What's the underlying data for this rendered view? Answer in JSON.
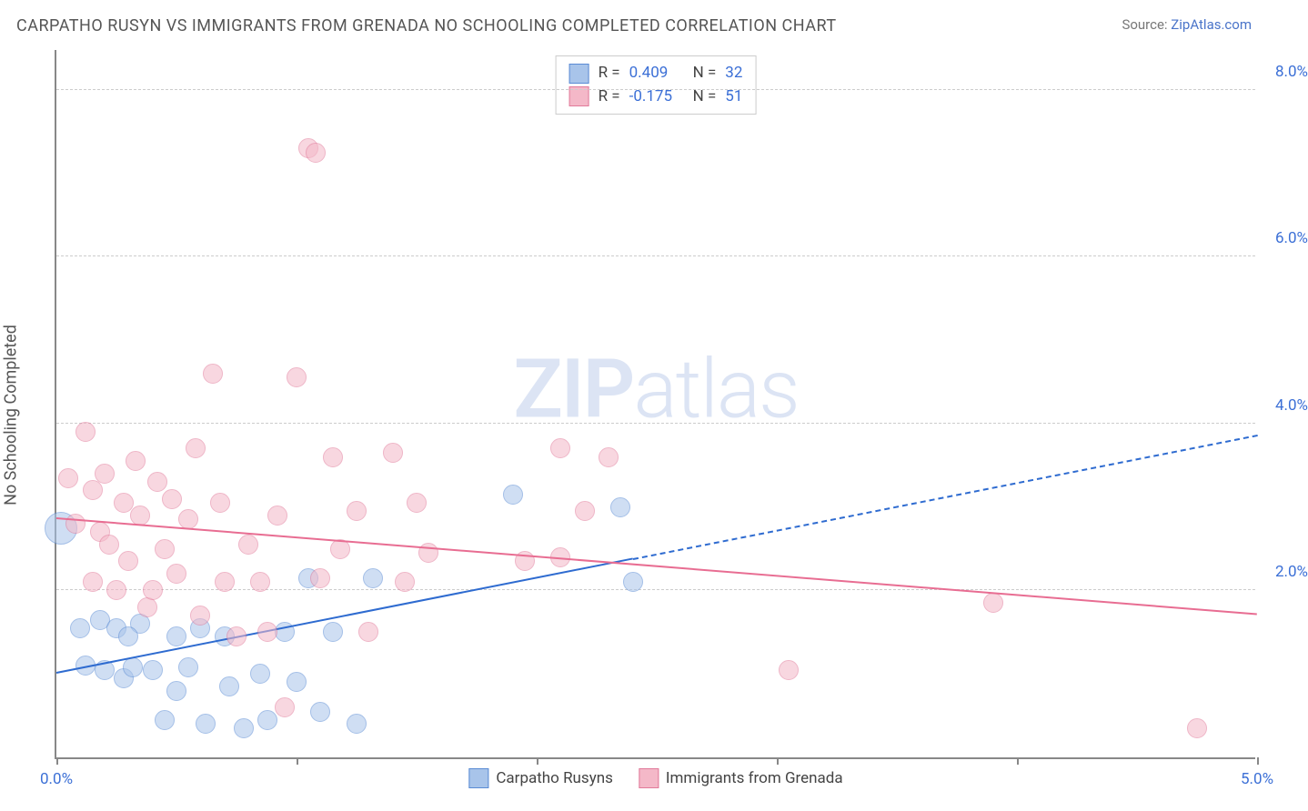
{
  "header": {
    "title": "CARPATHO RUSYN VS IMMIGRANTS FROM GRENADA NO SCHOOLING COMPLETED CORRELATION CHART",
    "source_prefix": "Source: ",
    "source_name": "ZipAtlas.com"
  },
  "chart": {
    "type": "scatter",
    "ylabel": "No Schooling Completed",
    "xlim": [
      0,
      5
    ],
    "ylim": [
      0,
      8.5
    ],
    "x_ticks": [
      0,
      1,
      2,
      3,
      4,
      5
    ],
    "x_tick_labels_shown": {
      "0": "0.0%",
      "5": "5.0%"
    },
    "y_gridlines": [
      2,
      4,
      6,
      8
    ],
    "y_tick_labels": {
      "2": "2.0%",
      "4": "4.0%",
      "6": "6.0%",
      "8": "8.0%"
    },
    "grid_color": "#cccccc",
    "axis_color": "#888888",
    "background_color": "#ffffff",
    "tick_label_color": "#3b6fd6",
    "label_fontsize": 18,
    "tick_fontsize": 17,
    "watermark_text": "ZIPatlas",
    "series": [
      {
        "id": "carpatho",
        "label": "Carpatho Rusyns",
        "fill_color": "#a8c4ea",
        "stroke_color": "#5a8bd4",
        "fill_opacity": 0.55,
        "marker_radius": 11,
        "trend": {
          "start": [
            0,
            1.0
          ],
          "end": [
            5,
            3.85
          ],
          "solid_until_x": 2.4,
          "line_color": "#2e6bd0",
          "line_width": 2,
          "dash": "5,4"
        },
        "R": "0.409",
        "N": "32",
        "points": [
          [
            0.02,
            2.75,
            18
          ],
          [
            0.1,
            1.55
          ],
          [
            0.12,
            1.1
          ],
          [
            0.18,
            1.65
          ],
          [
            0.2,
            1.05
          ],
          [
            0.25,
            1.55
          ],
          [
            0.28,
            0.95
          ],
          [
            0.32,
            1.08
          ],
          [
            0.35,
            1.6
          ],
          [
            0.4,
            1.05
          ],
          [
            0.45,
            0.45
          ],
          [
            0.5,
            0.8
          ],
          [
            0.55,
            1.08
          ],
          [
            0.6,
            1.55
          ],
          [
            0.62,
            0.4
          ],
          [
            0.7,
            1.45
          ],
          [
            0.72,
            0.85
          ],
          [
            0.78,
            0.35
          ],
          [
            0.85,
            1.0
          ],
          [
            0.88,
            0.45
          ],
          [
            0.95,
            1.5
          ],
          [
            1.05,
            2.15
          ],
          [
            1.1,
            0.55
          ],
          [
            1.15,
            1.5
          ],
          [
            1.25,
            0.4
          ],
          [
            1.32,
            2.15
          ],
          [
            1.9,
            3.15
          ],
          [
            2.35,
            3.0
          ],
          [
            2.4,
            2.1
          ],
          [
            1.0,
            0.9
          ],
          [
            0.3,
            1.45
          ],
          [
            0.5,
            1.45
          ]
        ]
      },
      {
        "id": "grenada",
        "label": "Immigrants from Grenada",
        "fill_color": "#f4b8c8",
        "stroke_color": "#e17a9a",
        "fill_opacity": 0.55,
        "marker_radius": 11,
        "trend": {
          "start": [
            0,
            2.85
          ],
          "end": [
            5,
            1.7
          ],
          "solid_until_x": 5,
          "line_color": "#e86d92",
          "line_width": 2,
          "dash": "none"
        },
        "R": "-0.175",
        "N": "51",
        "points": [
          [
            0.05,
            3.35
          ],
          [
            0.08,
            2.8
          ],
          [
            0.12,
            3.9
          ],
          [
            0.15,
            3.2
          ],
          [
            0.18,
            2.7
          ],
          [
            0.2,
            3.4
          ],
          [
            0.22,
            2.55
          ],
          [
            0.28,
            3.05
          ],
          [
            0.3,
            2.35
          ],
          [
            0.35,
            2.9
          ],
          [
            0.38,
            1.8
          ],
          [
            0.42,
            3.3
          ],
          [
            0.45,
            2.5
          ],
          [
            0.5,
            2.2
          ],
          [
            0.55,
            2.85
          ],
          [
            0.58,
            3.7
          ],
          [
            0.6,
            1.7
          ],
          [
            0.65,
            4.6
          ],
          [
            0.7,
            2.1
          ],
          [
            0.75,
            1.45
          ],
          [
            0.8,
            2.55
          ],
          [
            0.85,
            2.1
          ],
          [
            0.88,
            1.5
          ],
          [
            0.92,
            2.9
          ],
          [
            0.95,
            0.6
          ],
          [
            1.0,
            4.55
          ],
          [
            1.05,
            7.3
          ],
          [
            1.08,
            7.25
          ],
          [
            1.1,
            2.15
          ],
          [
            1.15,
            3.6
          ],
          [
            1.18,
            2.5
          ],
          [
            1.25,
            2.95
          ],
          [
            1.3,
            1.5
          ],
          [
            1.4,
            3.65
          ],
          [
            1.45,
            2.1
          ],
          [
            1.5,
            3.05
          ],
          [
            1.55,
            2.45
          ],
          [
            1.95,
            2.35
          ],
          [
            2.1,
            3.7
          ],
          [
            2.2,
            2.95
          ],
          [
            2.3,
            3.6
          ],
          [
            2.1,
            2.4
          ],
          [
            3.05,
            1.05
          ],
          [
            3.9,
            1.85
          ],
          [
            4.75,
            0.35
          ],
          [
            0.4,
            2.0
          ],
          [
            0.48,
            3.1
          ],
          [
            0.33,
            3.55
          ],
          [
            0.25,
            2.0
          ],
          [
            0.15,
            2.1
          ],
          [
            0.68,
            3.05
          ]
        ]
      }
    ],
    "legend_top": {
      "r_label": "R =",
      "n_label": "N ="
    }
  }
}
